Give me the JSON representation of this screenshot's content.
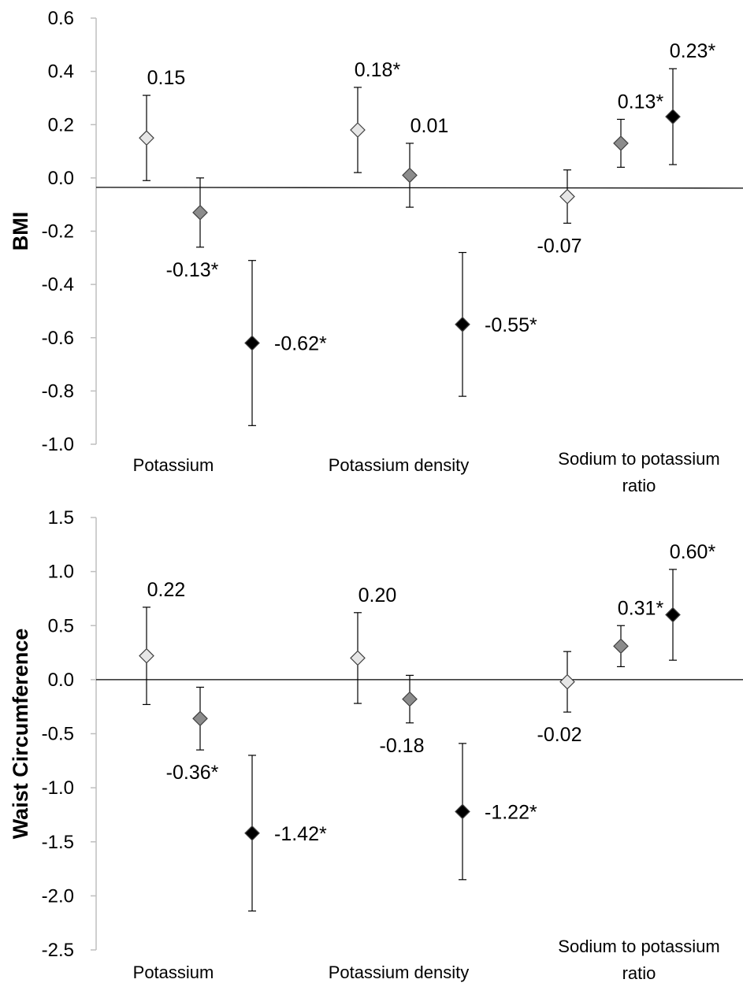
{
  "colors": {
    "light_marker": "#e6e6e6",
    "medium_marker": "#8c8c8c",
    "dark_marker": "#000000",
    "axis_line": "#bfbfbf",
    "zero_line": "#000000"
  },
  "chart_data": [
    {
      "type": "scatter",
      "title": "",
      "xlabel": "",
      "ylabel": "BMI",
      "ylim": [
        -1.0,
        0.6
      ],
      "y_ticks": [
        "0.6",
        "0.4",
        "0.2",
        "0.0",
        "-0.2",
        "-0.4",
        "-0.6",
        "-0.8",
        "-1.0"
      ],
      "grid": false,
      "legend": "none",
      "categories": [
        {
          "lines": [
            "Potassium"
          ]
        },
        {
          "lines": [
            "Potassium density"
          ]
        },
        {
          "lines": [
            "Sodium to potassium",
            "ratio"
          ]
        }
      ],
      "points": [
        {
          "category": 0,
          "slot": 0,
          "shade": "light",
          "value": 0.15,
          "lower": -0.01,
          "upper": 0.31,
          "label": "0.15",
          "label_pos": "above"
        },
        {
          "category": 0,
          "slot": 1,
          "shade": "medium",
          "value": -0.13,
          "lower": -0.26,
          "upper": 0.0,
          "label": "-0.13*",
          "label_pos": "below"
        },
        {
          "category": 0,
          "slot": 2,
          "shade": "dark",
          "value": -0.62,
          "lower": -0.93,
          "upper": -0.31,
          "label": "-0.62*",
          "label_pos": "right"
        },
        {
          "category": 1,
          "slot": 0,
          "shade": "light",
          "value": 0.18,
          "lower": 0.02,
          "upper": 0.34,
          "label": "0.18*",
          "label_pos": "above"
        },
        {
          "category": 1,
          "slot": 1,
          "shade": "medium",
          "value": 0.01,
          "lower": -0.11,
          "upper": 0.13,
          "label": "0.01",
          "label_pos": "above"
        },
        {
          "category": 1,
          "slot": 2,
          "shade": "dark",
          "value": -0.55,
          "lower": -0.82,
          "upper": -0.28,
          "label": "-0.55*",
          "label_pos": "right"
        },
        {
          "category": 2,
          "slot": 0,
          "shade": "light",
          "value": -0.07,
          "lower": -0.17,
          "upper": 0.03,
          "label": "-0.07",
          "label_pos": "below"
        },
        {
          "category": 2,
          "slot": 1,
          "shade": "medium",
          "value": 0.13,
          "lower": 0.04,
          "upper": 0.22,
          "label": "0.13*",
          "label_pos": "above"
        },
        {
          "category": 2,
          "slot": 2,
          "shade": "dark",
          "value": 0.23,
          "lower": 0.05,
          "upper": 0.41,
          "label": "0.23*",
          "label_pos": "above"
        }
      ]
    },
    {
      "type": "scatter",
      "title": "",
      "xlabel": "",
      "ylabel": "Waist Circumference",
      "ylim": [
        -2.5,
        1.5
      ],
      "y_ticks": [
        "1.5",
        "1.0",
        "0.5",
        "0.0",
        "-0.5",
        "-1.0",
        "-1.5",
        "-2.0",
        "-2.5"
      ],
      "grid": false,
      "legend": "none",
      "categories": [
        {
          "lines": [
            "Potassium"
          ]
        },
        {
          "lines": [
            "Potassium density"
          ]
        },
        {
          "lines": [
            "Sodium to potassium",
            "ratio"
          ]
        }
      ],
      "points": [
        {
          "category": 0,
          "slot": 0,
          "shade": "light",
          "value": 0.22,
          "lower": -0.23,
          "upper": 0.67,
          "label": "0.22",
          "label_pos": "above"
        },
        {
          "category": 0,
          "slot": 1,
          "shade": "medium",
          "value": -0.36,
          "lower": -0.65,
          "upper": -0.07,
          "label": "-0.36*",
          "label_pos": "below"
        },
        {
          "category": 0,
          "slot": 2,
          "shade": "dark",
          "value": -1.42,
          "lower": -2.14,
          "upper": -0.7,
          "label": "-1.42*",
          "label_pos": "right"
        },
        {
          "category": 1,
          "slot": 0,
          "shade": "light",
          "value": 0.2,
          "lower": -0.22,
          "upper": 0.62,
          "label": "0.20",
          "label_pos": "above"
        },
        {
          "category": 1,
          "slot": 1,
          "shade": "medium",
          "value": -0.18,
          "lower": -0.4,
          "upper": 0.04,
          "label": "-0.18",
          "label_pos": "below"
        },
        {
          "category": 1,
          "slot": 2,
          "shade": "dark",
          "value": -1.22,
          "lower": -1.85,
          "upper": -0.59,
          "label": "-1.22*",
          "label_pos": "right"
        },
        {
          "category": 2,
          "slot": 0,
          "shade": "light",
          "value": -0.02,
          "lower": -0.3,
          "upper": 0.26,
          "label": "-0.02",
          "label_pos": "below"
        },
        {
          "category": 2,
          "slot": 1,
          "shade": "medium",
          "value": 0.31,
          "lower": 0.12,
          "upper": 0.5,
          "label": "0.31*",
          "label_pos": "above"
        },
        {
          "category": 2,
          "slot": 2,
          "shade": "dark",
          "value": 0.6,
          "lower": 0.18,
          "upper": 1.02,
          "label": "0.60*",
          "label_pos": "above"
        }
      ]
    }
  ]
}
